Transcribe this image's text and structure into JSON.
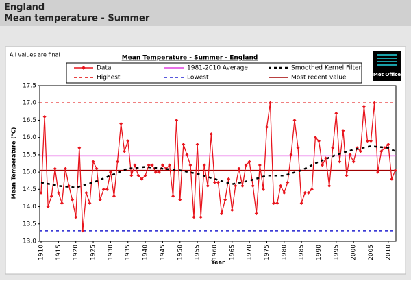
{
  "header": {
    "title": "England",
    "subtitle": "Mean temperature - Summer"
  },
  "note": "All values are final",
  "logo": "Met Office",
  "chart_data": {
    "type": "line",
    "title": "Mean Temperature - Summer - England",
    "x_label": "Year",
    "y_label": "Mean Temperature (°C)",
    "xlim": [
      1909.6,
      2012.2
    ],
    "xticks": [
      1910,
      1915,
      1920,
      1925,
      1930,
      1935,
      1940,
      1945,
      1950,
      1955,
      1960,
      1965,
      1970,
      1975,
      1980,
      1985,
      1990,
      1995,
      2000,
      2005,
      2010
    ],
    "ylim": [
      13,
      17.5
    ],
    "yticks": [
      {
        "value": 13,
        "label": "13.0"
      },
      13.5,
      {
        "value": 14,
        "label": "14.0"
      },
      14.5,
      {
        "value": 15,
        "label": "15.0"
      },
      15.5,
      {
        "value": 16,
        "label": "16.0"
      },
      16.5,
      {
        "value": 17,
        "label": "17.0"
      },
      17.5
    ],
    "grid": false,
    "series": [
      {
        "name": "Data",
        "color": "#e8141c",
        "style": "solid-markers",
        "x": [
          1910,
          1911,
          1912,
          1913,
          1914,
          1915,
          1916,
          1917,
          1918,
          1919,
          1920,
          1921,
          1922,
          1923,
          1924,
          1925,
          1926,
          1927,
          1928,
          1929,
          1930,
          1931,
          1932,
          1933,
          1934,
          1935,
          1936,
          1937,
          1938,
          1939,
          1940,
          1941,
          1942,
          1943,
          1944,
          1945,
          1946,
          1947,
          1948,
          1949,
          1950,
          1951,
          1952,
          1953,
          1954,
          1955,
          1956,
          1957,
          1958,
          1959,
          1960,
          1961,
          1962,
          1963,
          1964,
          1965,
          1966,
          1967,
          1968,
          1969,
          1970,
          1971,
          1972,
          1973,
          1974,
          1975,
          1976,
          1977,
          1978,
          1979,
          1980,
          1981,
          1982,
          1983,
          1984,
          1985,
          1986,
          1987,
          1988,
          1989,
          1990,
          1991,
          1992,
          1993,
          1994,
          1995,
          1996,
          1997,
          1998,
          1999,
          2000,
          2001,
          2002,
          2003,
          2004,
          2005,
          2006,
          2007,
          2008,
          2009,
          2010,
          2011,
          2012
        ],
        "values": [
          14.4,
          16.6,
          14.0,
          14.3,
          15.1,
          14.4,
          14.1,
          15.1,
          14.6,
          14.2,
          13.7,
          15.7,
          13.3,
          14.4,
          14.1,
          15.3,
          15.1,
          14.2,
          14.5,
          14.5,
          15.0,
          14.3,
          15.3,
          16.4,
          15.6,
          15.9,
          14.9,
          15.2,
          14.9,
          14.8,
          14.9,
          15.2,
          15.2,
          15.0,
          15.0,
          15.2,
          15.1,
          15.2,
          14.3,
          16.5,
          14.2,
          15.8,
          15.5,
          15.2,
          13.7,
          15.8,
          13.7,
          15.2,
          14.6,
          16.1,
          14.7,
          14.7,
          13.8,
          14.2,
          14.8,
          13.9,
          14.6,
          15.1,
          14.6,
          15.2,
          15.3,
          14.6,
          13.8,
          15.2,
          14.5,
          16.3,
          17.0,
          14.1,
          14.1,
          14.6,
          14.4,
          14.7,
          15.5,
          16.5,
          15.7,
          14.1,
          14.4,
          14.4,
          14.5,
          16.0,
          15.9,
          15.2,
          15.4,
          14.6,
          15.7,
          16.7,
          15.3,
          16.2,
          14.9,
          15.5,
          15.3,
          15.7,
          15.6,
          16.9,
          15.9,
          15.9,
          17.0,
          15.0,
          15.6,
          15.7,
          15.8,
          14.8,
          15.05
        ]
      },
      {
        "name": "Smoothed Kernel Filter",
        "color": "#000000",
        "style": "dashed",
        "x": [
          1910,
          1915,
          1920,
          1925,
          1930,
          1935,
          1940,
          1945,
          1950,
          1955,
          1960,
          1965,
          1970,
          1975,
          1980,
          1985,
          1990,
          1995,
          2000,
          2005,
          2010,
          2012
        ],
        "values": [
          14.7,
          14.6,
          14.55,
          14.7,
          14.9,
          15.1,
          15.15,
          15.1,
          15.05,
          14.95,
          14.8,
          14.65,
          14.75,
          14.9,
          14.9,
          15.05,
          15.3,
          15.5,
          15.65,
          15.75,
          15.7,
          15.6
        ]
      }
    ],
    "reference_lines": [
      {
        "name": "1981-2010 Average",
        "color": "#e040e0",
        "style": "solid",
        "value": 15.47
      },
      {
        "name": "Highest",
        "color": "#e00000",
        "style": "dashed",
        "value": 17.0
      },
      {
        "name": "Lowest",
        "color": "#2020d0",
        "style": "dashed",
        "value": 13.3
      },
      {
        "name": "Most recent value",
        "color": "#a00000",
        "style": "solid",
        "value": 15.05
      }
    ]
  }
}
